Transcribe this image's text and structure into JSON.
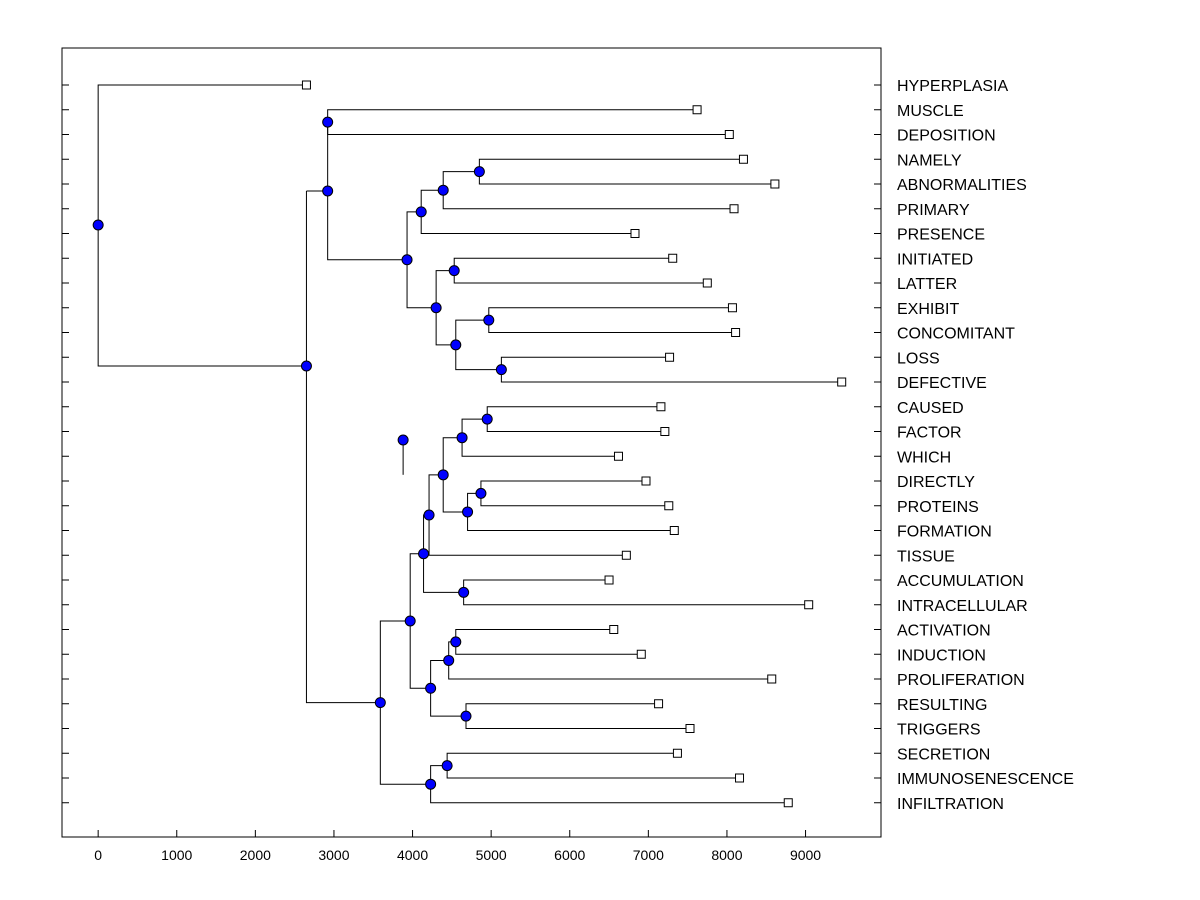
{
  "chart_data": {
    "type": "dendrogram",
    "xlim": [
      -460,
      9960
    ],
    "x_ticks": [
      0,
      1000,
      2000,
      3000,
      4000,
      5000,
      6000,
      7000,
      8000,
      9000
    ],
    "x_tick_labels": [
      "0",
      "1000",
      "2000",
      "3000",
      "4000",
      "5000",
      "6000",
      "7000",
      "8000",
      "9000"
    ],
    "grid": false,
    "leaves": [
      {
        "label": "HYPERPLASIA",
        "value": 2650
      },
      {
        "label": "MUSCLE",
        "value": 7620
      },
      {
        "label": "DEPOSITION",
        "value": 8030
      },
      {
        "label": "NAMELY",
        "value": 8210
      },
      {
        "label": "ABNORMALITIES",
        "value": 8610
      },
      {
        "label": "PRIMARY",
        "value": 8090
      },
      {
        "label": "PRESENCE",
        "value": 6830
      },
      {
        "label": "INITIATED",
        "value": 7310
      },
      {
        "label": "LATTER",
        "value": 7750
      },
      {
        "label": "EXHIBIT",
        "value": 8070
      },
      {
        "label": "CONCOMITANT",
        "value": 8110
      },
      {
        "label": "LOSS",
        "value": 7270
      },
      {
        "label": "DEFECTIVE",
        "value": 9460
      },
      {
        "label": "CAUSED",
        "value": 7160
      },
      {
        "label": "FACTOR",
        "value": 7210
      },
      {
        "label": "WHICH",
        "value": 6620
      },
      {
        "label": "DIRECTLY",
        "value": 6970
      },
      {
        "label": "PROTEINS",
        "value": 7260
      },
      {
        "label": "FORMATION",
        "value": 7330
      },
      {
        "label": "TISSUE",
        "value": 6720
      },
      {
        "label": "ACCUMULATION",
        "value": 6500
      },
      {
        "label": "INTRACELLULAR",
        "value": 9040
      },
      {
        "label": "ACTIVATION",
        "value": 6560
      },
      {
        "label": "INDUCTION",
        "value": 6910
      },
      {
        "label": "PROLIFERATION",
        "value": 8570
      },
      {
        "label": "RESULTING",
        "value": 7130
      },
      {
        "label": "TRIGGERS",
        "value": 7530
      },
      {
        "label": "SECRETION",
        "value": 7370
      },
      {
        "label": "IMMUNOSENESCENCE",
        "value": 8160
      },
      {
        "label": "INFILTRATION",
        "value": 8780
      }
    ],
    "nodes": [
      {
        "id": "n_namely_abn",
        "value": 4850,
        "children": [
          "NAMELY",
          "ABNORMALITIES"
        ]
      },
      {
        "id": "n_namely_primary",
        "value": 4390,
        "children": [
          "n_namely_abn",
          "PRIMARY"
        ]
      },
      {
        "id": "n_presence",
        "value": 4110,
        "children": [
          "n_namely_primary",
          "PRESENCE"
        ]
      },
      {
        "id": "n_initiated_latter",
        "value": 4530,
        "children": [
          "INITIATED",
          "LATTER"
        ]
      },
      {
        "id": "n_exhibit_conc",
        "value": 4970,
        "children": [
          "EXHIBIT",
          "CONCOMITANT"
        ]
      },
      {
        "id": "n_loss_def",
        "value": 5130,
        "children": [
          "LOSS",
          "DEFECTIVE"
        ]
      },
      {
        "id": "n_exhibit_loss",
        "value": 4550,
        "children": [
          "n_exhibit_conc",
          "n_loss_def"
        ]
      },
      {
        "id": "n_initiated_exhibit",
        "value": 4300,
        "children": [
          "n_initiated_latter",
          "n_exhibit_loss"
        ]
      },
      {
        "id": "n_upper_big",
        "value": 3930,
        "children": [
          "n_presence",
          "n_initiated_exhibit"
        ]
      },
      {
        "id": "n_muscle_dep",
        "value": 2920,
        "children": [
          "MUSCLE",
          "DEPOSITION"
        ]
      },
      {
        "id": "n_caused_factor",
        "value": 4950,
        "children": [
          "CAUSED",
          "FACTOR"
        ]
      },
      {
        "id": "n_which",
        "value": 4630,
        "children": [
          "n_caused_factor",
          "WHICH"
        ]
      },
      {
        "id": "n_directly_proteins",
        "value": 4870,
        "children": [
          "DIRECTLY",
          "PROTEINS"
        ]
      },
      {
        "id": "n_formation",
        "value": 4700,
        "children": [
          "n_directly_proteins",
          "FORMATION"
        ]
      },
      {
        "id": "n_which_formation",
        "value": 4390,
        "children": [
          "n_which",
          "n_formation"
        ]
      },
      {
        "id": "n_tissue",
        "value": 4210,
        "children": [
          "n_which_formation",
          "TISSUE"
        ]
      },
      {
        "id": "n_accum_intra",
        "value": 4650,
        "children": [
          "ACCUMULATION",
          "INTRACELLULAR"
        ]
      },
      {
        "id": "n_tissue_accum",
        "value": 4140,
        "children": [
          "n_tissue",
          "n_accum_intra"
        ]
      },
      {
        "id": "n_act_ind",
        "value": 4550,
        "children": [
          "ACTIVATION",
          "INDUCTION"
        ]
      },
      {
        "id": "n_prolif",
        "value": 4460,
        "children": [
          "n_act_ind",
          "PROLIFERATION"
        ]
      },
      {
        "id": "n_result_trig",
        "value": 4680,
        "children": [
          "RESULTING",
          "TRIGGERS"
        ]
      },
      {
        "id": "n_act_result",
        "value": 4230,
        "children": [
          "n_prolif",
          "n_result_trig"
        ]
      },
      {
        "id": "n_middle",
        "value": 3970,
        "children": [
          "n_tissue_accum",
          "n_act_result"
        ]
      },
      {
        "id": "n_caused_act",
        "value": 3880,
        "children": [
          "n_middle_top",
          "n_middle"
        ]
      },
      {
        "id": "n_sec_imm",
        "value": 4440,
        "children": [
          "SECRETION",
          "IMMUNOSENESCENCE"
        ]
      },
      {
        "id": "n_infiltration",
        "value": 4230,
        "children": [
          "n_sec_imm",
          "INFILTRATION"
        ]
      },
      {
        "id": "n_lower_big",
        "value": 3590,
        "children": [
          "n_caused_act",
          "n_infiltration"
        ]
      },
      {
        "id": "n_main",
        "value": 2650,
        "children": [
          "n_upper",
          "n_lower_big"
        ]
      },
      {
        "id": "root",
        "value": 0,
        "children": [
          "HYPERPLASIA",
          "n_main"
        ]
      }
    ]
  }
}
